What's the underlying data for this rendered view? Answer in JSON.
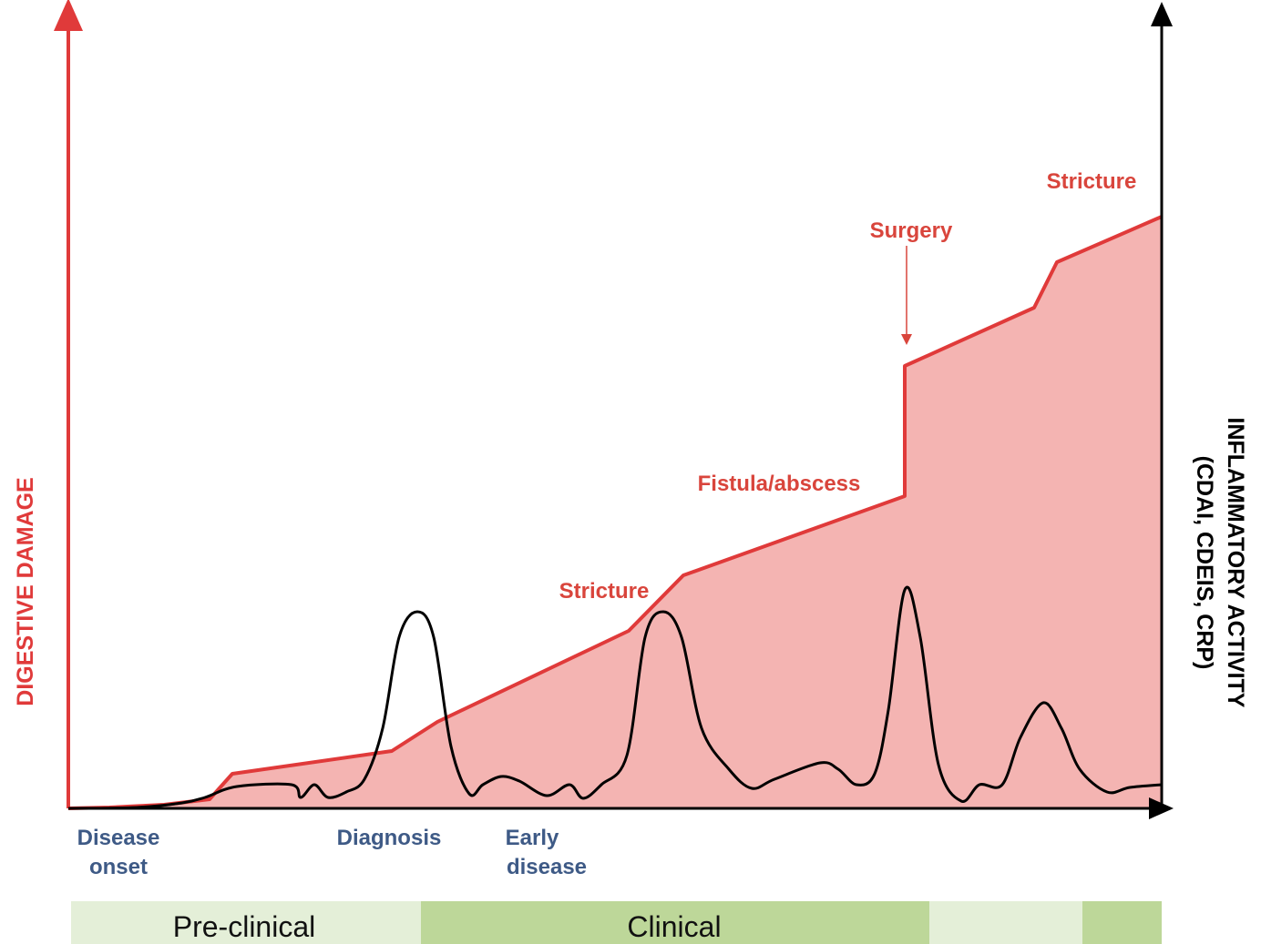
{
  "axes": {
    "left_label": "DIGESTIVE DAMAGE",
    "right_label": [
      "INFLAMMATORY ACTIVITY",
      "(CDAI, CDEIS, CRP)"
    ]
  },
  "events": [
    "Stricture",
    "Fistula/abscess",
    "Surgery",
    "Stricture"
  ],
  "milestones": [
    [
      "Disease",
      "onset"
    ],
    [
      "Diagnosis"
    ],
    [
      "Early",
      "disease"
    ]
  ],
  "phases": [
    "Pre-clinical",
    "Clinical"
  ]
}
